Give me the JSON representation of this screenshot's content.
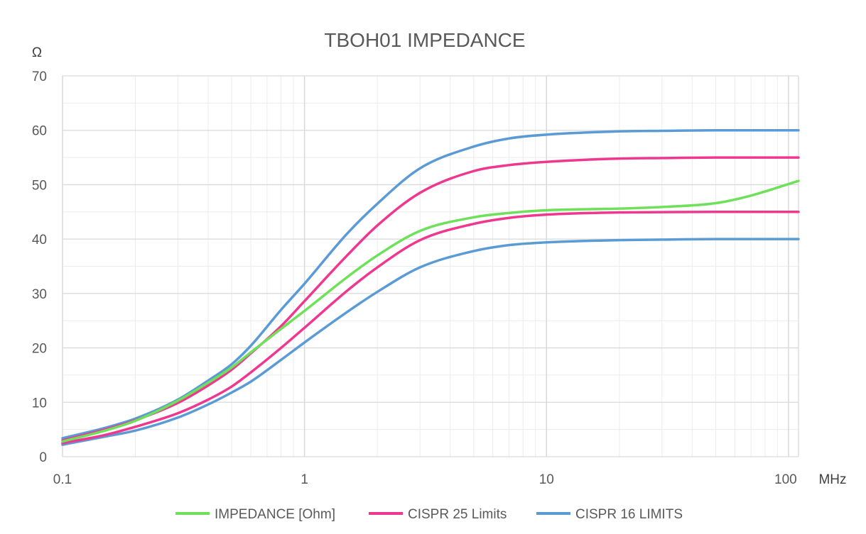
{
  "chart_data": {
    "type": "line",
    "title": "TBOH01 IMPEDANCE",
    "ylabel": "Ω",
    "xlabel": "MHz",
    "x_scale": "log",
    "xlim": [
      0.1,
      110
    ],
    "ylim": [
      0,
      70
    ],
    "x_ticks": [
      0.1,
      1,
      10,
      100
    ],
    "x_tick_labels": [
      "0.1",
      "1",
      "10",
      "100"
    ],
    "y_ticks": [
      0,
      10,
      20,
      30,
      40,
      50,
      60,
      70
    ],
    "y_tick_labels": [
      "0",
      "10",
      "20",
      "30",
      "40",
      "50",
      "60",
      "70"
    ],
    "grid": true,
    "legend_position": "bottom",
    "x": [
      0.1,
      0.15,
      0.2,
      0.3,
      0.4,
      0.5,
      0.6,
      0.8,
      1,
      1.5,
      2,
      3,
      5,
      7,
      10,
      20,
      30,
      50,
      70,
      110
    ],
    "series": [
      {
        "name": "IMPEDANCE [Ohm]",
        "color": "#6EE05A",
        "values": [
          2.8,
          4.8,
          6.6,
          10.3,
          13.6,
          16.4,
          19.2,
          23.5,
          26.8,
          33.0,
          37.0,
          41.5,
          44.0,
          44.8,
          45.3,
          45.6,
          45.9,
          46.6,
          48.0,
          50.7
        ]
      },
      {
        "name": "CISPR 25 Limits (upper)",
        "color": "#F0378F",
        "values": [
          3.0,
          5.0,
          6.7,
          9.9,
          13.1,
          16.0,
          19.0,
          24.0,
          28.6,
          37.0,
          42.5,
          48.5,
          52.5,
          53.6,
          54.2,
          54.8,
          54.9,
          55.0,
          55.0,
          55.0
        ]
      },
      {
        "name": "CISPR 25 Limits (lower)",
        "color": "#F0378F",
        "values": [
          2.5,
          4.0,
          5.5,
          8.0,
          10.5,
          12.9,
          15.5,
          20.0,
          23.7,
          30.5,
          34.8,
          39.8,
          42.8,
          43.9,
          44.5,
          44.9,
          44.95,
          45.0,
          45.0,
          45.0
        ]
      },
      {
        "name": "CISPR 16 LIMITS (upper)",
        "color": "#5B9BD5",
        "values": [
          3.4,
          5.3,
          7.0,
          10.5,
          14.0,
          17.0,
          20.4,
          27.0,
          31.8,
          41.0,
          46.5,
          53.0,
          57.0,
          58.5,
          59.2,
          59.8,
          59.9,
          60.0,
          60.0,
          60.0
        ]
      },
      {
        "name": "CISPR 16 LIMITS (lower)",
        "color": "#5B9BD5",
        "values": [
          2.2,
          3.7,
          4.8,
          7.2,
          9.6,
          11.8,
          13.8,
          17.8,
          21.0,
          26.6,
          30.3,
          34.8,
          37.8,
          38.9,
          39.4,
          39.8,
          39.9,
          40.0,
          40.0,
          40.0
        ]
      }
    ],
    "legend": [
      {
        "label": "IMPEDANCE [Ohm]",
        "color": "#6EE05A"
      },
      {
        "label": "CISPR 25 Limits",
        "color": "#F0378F"
      },
      {
        "label": "CISPR 16 LIMITS",
        "color": "#5B9BD5"
      }
    ]
  }
}
